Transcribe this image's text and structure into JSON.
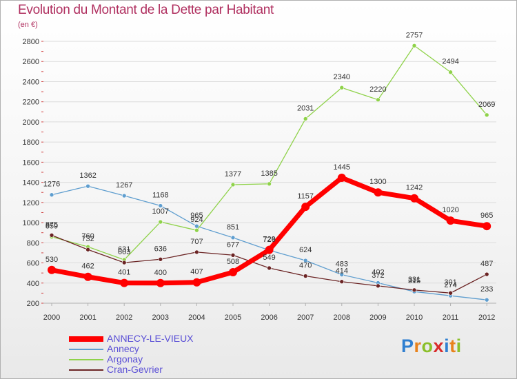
{
  "header": {
    "title": "Evolution du Montant de la Dette par Habitant",
    "subtitle": "(en €)"
  },
  "brand": {
    "letters": [
      "P",
      "r",
      "o",
      "x",
      "i",
      "t",
      "i"
    ],
    "colors": [
      "#2f7fd0",
      "#e8821c",
      "#8bbf2a",
      "#d92b2b",
      "#2f7fd0",
      "#e8821c",
      "#8bbf2a"
    ]
  },
  "chart_data": {
    "type": "line",
    "title": "Evolution du Montant de la Dette par Habitant",
    "subtitle": "(en €)",
    "xlabel": "",
    "ylabel": "",
    "x": [
      "2000",
      "2001",
      "2002",
      "2003",
      "2004",
      "2005",
      "2006",
      "2007",
      "2008",
      "2009",
      "2010",
      "2011",
      "2012"
    ],
    "ylim": [
      200,
      2800
    ],
    "yticks": [
      200,
      400,
      600,
      800,
      1000,
      1200,
      1400,
      1600,
      1800,
      2000,
      2200,
      2400,
      2600,
      2800
    ],
    "grid": true,
    "legend": "bottom-left",
    "series": [
      {
        "name": "ANNECY-LE-VIEUX",
        "color": "#ff0000",
        "labelColor": "#333333",
        "width": 7,
        "values": [
          530,
          462,
          401,
          400,
          407,
          508,
          729,
          1157,
          1445,
          1300,
          1242,
          1020,
          965
        ]
      },
      {
        "name": "Annecy",
        "color": "#5f9ecf",
        "labelColor": "#333333",
        "width": 1.3,
        "values": [
          1276,
          1362,
          1267,
          1168,
          965,
          851,
          726,
          624,
          483,
          402,
          315,
          274,
          233
        ]
      },
      {
        "name": "Argonay",
        "color": "#8fd24a",
        "labelColor": "#333333",
        "width": 1.3,
        "values": [
          859,
          760,
          631,
          1007,
          924,
          1377,
          1385,
          2031,
          2340,
          2220,
          2757,
          2494,
          2069
        ]
      },
      {
        "name": "Cran-Gevrier",
        "color": "#6b2424",
        "labelColor": "#333333",
        "width": 1.3,
        "values": [
          875,
          732,
          603,
          636,
          707,
          677,
          549,
          470,
          414,
          372,
          331,
          301,
          487
        ]
      }
    ]
  },
  "legend_colors": {
    "text": "#5a4fd6"
  }
}
